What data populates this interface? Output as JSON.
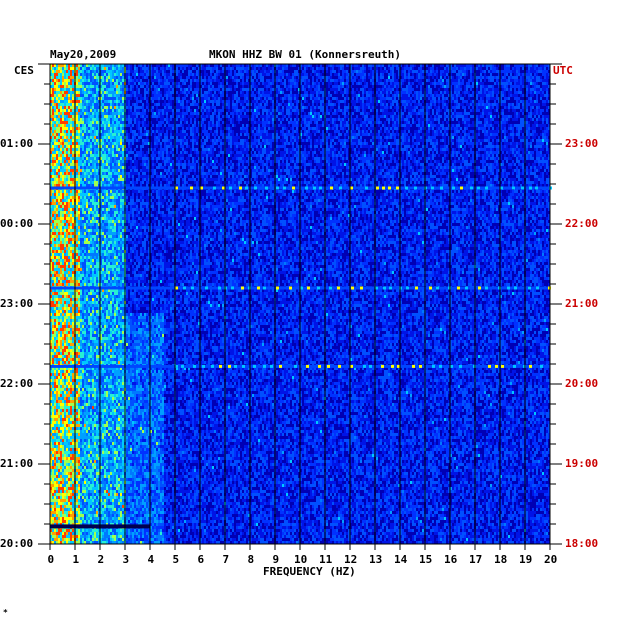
{
  "header": {
    "date": "May20,2009",
    "station": "MKON HHZ BW 01 (Konnersreuth)"
  },
  "corner_mark": "*",
  "colors": {
    "background": "#0000b4",
    "left_axis_text": "#000000",
    "right_axis_text": "#cc0000",
    "strong_colors": [
      "#00c8ff",
      "#ffff00",
      "#ff0000"
    ]
  },
  "chart_data": {
    "type": "heatmap",
    "title": "MKON HHZ BW 01 (Konnersreuth)",
    "date_label": "May20,2009",
    "xlabel": "FREQUENCY (HZ)",
    "xlim": [
      0,
      20
    ],
    "x_ticks": [
      "0",
      "1",
      "2",
      "3",
      "4",
      "5",
      "6",
      "7",
      "8",
      "9",
      "10",
      "11",
      "12",
      "13",
      "14",
      "15",
      "16",
      "17",
      "18",
      "19",
      "20"
    ],
    "left_axis": {
      "label": "CES",
      "ticks": [
        "01:00",
        "00:00",
        "23:00",
        "22:00",
        "21:00",
        "20:00"
      ],
      "tick_hours_from_bottom": [
        5,
        4,
        3,
        2,
        1,
        0
      ]
    },
    "right_axis": {
      "label": "UTC",
      "ticks": [
        "23:00",
        "22:00",
        "21:00",
        "20:00",
        "19:00",
        "18:00"
      ],
      "tick_hours_from_bottom": [
        5,
        4,
        3,
        2,
        1,
        0
      ]
    },
    "time_span_hours": 6,
    "grid": true,
    "notable_bands": [
      {
        "hours_from_bottom": 4.45,
        "freq_from": 0,
        "freq_to": 20,
        "note": "strong horizontal line"
      },
      {
        "hours_from_bottom": 3.2,
        "freq_from": 0,
        "freq_to": 20,
        "note": "horizontal line"
      },
      {
        "hours_from_bottom": 2.22,
        "freq_from": 0,
        "freq_to": 20,
        "note": "horizontal line"
      },
      {
        "hours_from_bottom": 0.22,
        "freq_from": 0,
        "freq_to": 4,
        "note": "dark band"
      }
    ]
  }
}
